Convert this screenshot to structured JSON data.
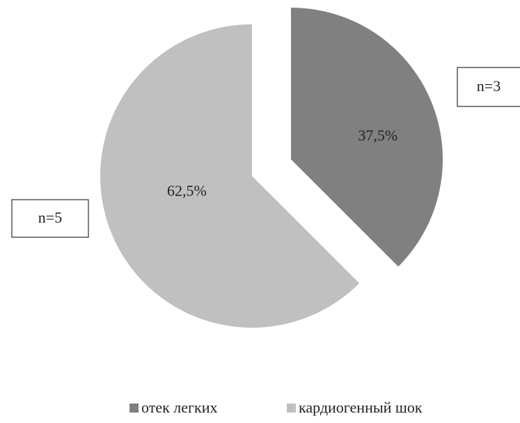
{
  "chart_data": {
    "type": "pie",
    "categories": [
      "отек легких",
      "кардиогенный шок"
    ],
    "values": [
      37.5,
      62.5
    ],
    "value_labels": [
      "37,5%",
      "62,5%"
    ],
    "colors": [
      "#808080",
      "#c0c0c0"
    ],
    "annotations": [
      "n=3",
      "n=5"
    ],
    "legend": "bottom"
  }
}
